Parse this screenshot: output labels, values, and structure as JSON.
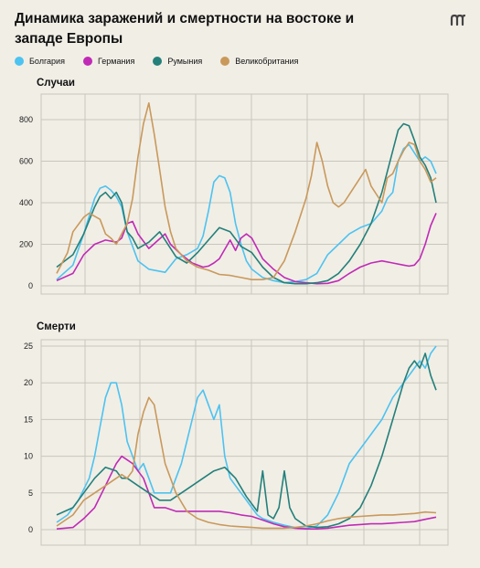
{
  "title": "Динамика заражений и смертности на востоке и западе Европы",
  "colors": {
    "Болгария": "#4cc3f0",
    "Германия": "#c02ab6",
    "Румыния": "#23807a",
    "Великобритания": "#c9995b",
    "grid": "#c9c6be",
    "background": "#f1eee6"
  },
  "legend": [
    "Болгария",
    "Германия",
    "Румыния",
    "Великобритания"
  ],
  "chart_data": [
    {
      "type": "line",
      "title": "Случаи",
      "yticks": [
        0,
        200,
        400,
        600,
        800
      ],
      "ylim": [
        0,
        900
      ],
      "xlim": [
        0,
        70
      ],
      "grid": true,
      "legend_position": "top-left",
      "series": [
        {
          "name": "Болгария",
          "x": [
            0,
            3,
            5,
            7,
            8,
            9,
            10,
            11,
            12,
            13,
            15,
            17,
            20,
            22,
            24,
            26,
            27,
            28,
            29,
            30,
            31,
            32,
            33,
            34,
            35,
            36,
            38,
            40,
            42,
            44,
            46,
            48,
            50,
            52,
            54,
            56,
            58,
            60,
            61,
            62,
            63,
            64,
            65,
            66,
            67,
            68,
            69,
            70
          ],
          "y": [
            30,
            100,
            250,
            420,
            470,
            480,
            460,
            430,
            380,
            260,
            120,
            80,
            65,
            130,
            150,
            180,
            240,
            360,
            500,
            530,
            520,
            450,
            300,
            200,
            120,
            80,
            40,
            25,
            15,
            20,
            30,
            60,
            150,
            200,
            250,
            280,
            300,
            360,
            420,
            450,
            600,
            660,
            680,
            640,
            600,
            620,
            600,
            540
          ]
        },
        {
          "name": "Германия",
          "x": [
            0,
            3,
            5,
            7,
            9,
            11,
            12,
            13,
            14,
            15,
            17,
            20,
            21,
            23,
            25,
            27,
            28,
            29,
            30,
            32,
            33,
            34,
            35,
            36,
            38,
            40,
            42,
            44,
            46,
            48,
            50,
            52,
            54,
            56,
            58,
            60,
            62,
            64,
            65,
            66,
            67,
            68,
            69,
            70
          ],
          "y": [
            25,
            60,
            150,
            200,
            220,
            210,
            230,
            300,
            310,
            250,
            180,
            250,
            200,
            150,
            110,
            90,
            95,
            110,
            130,
            220,
            170,
            230,
            250,
            230,
            130,
            80,
            40,
            20,
            15,
            10,
            12,
            25,
            60,
            90,
            110,
            120,
            110,
            100,
            95,
            100,
            130,
            200,
            290,
            350
          ]
        },
        {
          "name": "Румыния",
          "x": [
            0,
            3,
            5,
            7,
            8,
            9,
            10,
            11,
            12,
            13,
            14,
            15,
            17,
            19,
            20,
            22,
            24,
            26,
            28,
            30,
            32,
            34,
            36,
            38,
            40,
            42,
            44,
            46,
            48,
            50,
            52,
            54,
            56,
            58,
            60,
            62,
            63,
            64,
            65,
            66,
            67,
            68,
            69,
            70
          ],
          "y": [
            90,
            150,
            250,
            380,
            430,
            450,
            420,
            450,
            400,
            260,
            230,
            180,
            210,
            260,
            220,
            140,
            110,
            160,
            220,
            280,
            260,
            190,
            160,
            90,
            40,
            15,
            10,
            10,
            15,
            25,
            60,
            120,
            200,
            300,
            450,
            650,
            750,
            780,
            770,
            700,
            620,
            580,
            520,
            400
          ]
        },
        {
          "name": "Великобритания",
          "x": [
            0,
            2,
            3,
            5,
            6,
            8,
            9,
            10,
            11,
            12,
            13,
            14,
            15,
            16,
            17,
            18,
            19,
            20,
            21,
            22,
            24,
            26,
            28,
            30,
            32,
            34,
            36,
            38,
            40,
            42,
            44,
            46,
            47,
            48,
            49,
            50,
            51,
            52,
            53,
            54,
            56,
            57,
            58,
            60,
            61,
            62,
            63,
            64,
            65,
            66,
            67,
            68,
            69,
            70
          ],
          "y": [
            60,
            160,
            260,
            330,
            350,
            320,
            250,
            230,
            200,
            250,
            300,
            420,
            620,
            780,
            880,
            730,
            560,
            380,
            260,
            180,
            120,
            90,
            75,
            55,
            50,
            40,
            30,
            30,
            40,
            120,
            260,
            420,
            530,
            690,
            600,
            480,
            400,
            380,
            400,
            440,
            520,
            560,
            480,
            400,
            520,
            540,
            600,
            650,
            690,
            680,
            600,
            560,
            500,
            520
          ]
        }
      ]
    },
    {
      "type": "line",
      "title": "Смерти",
      "yticks": [
        0,
        5,
        10,
        15,
        20,
        25
      ],
      "ylim": [
        0,
        25
      ],
      "xlim": [
        0,
        70
      ],
      "grid": true,
      "series": [
        {
          "name": "Болгария",
          "x": [
            0,
            2,
            4,
            6,
            7,
            8,
            9,
            10,
            11,
            12,
            13,
            14,
            15,
            16,
            17,
            18,
            19,
            20,
            21,
            22,
            23,
            24,
            25,
            26,
            27,
            28,
            29,
            30,
            31,
            32,
            33,
            34,
            35,
            36,
            37,
            38,
            40,
            42,
            44,
            46,
            48,
            50,
            52,
            54,
            56,
            58,
            60,
            62,
            63,
            64,
            65,
            66,
            67,
            68,
            69,
            70
          ],
          "y": [
            1,
            2,
            4,
            7,
            10,
            14,
            18,
            20,
            20,
            17,
            12,
            10,
            8,
            9,
            7,
            5,
            5,
            5,
            5,
            7,
            9,
            12,
            15,
            18,
            19,
            17,
            15,
            17,
            10,
            7,
            6,
            5,
            4,
            3,
            2,
            1.5,
            1,
            0.6,
            0.3,
            0.2,
            0.5,
            2,
            5,
            9,
            11,
            13,
            15,
            18,
            19,
            20,
            21,
            22,
            23,
            22,
            24,
            25
          ]
        },
        {
          "name": "Германия",
          "x": [
            0,
            3,
            5,
            7,
            9,
            11,
            12,
            13,
            14,
            15,
            16,
            17,
            18,
            19,
            20,
            22,
            24,
            26,
            28,
            30,
            32,
            34,
            36,
            38,
            40,
            42,
            44,
            46,
            48,
            50,
            52,
            54,
            56,
            58,
            60,
            62,
            64,
            66,
            68,
            70
          ],
          "y": [
            0.1,
            0.3,
            1.5,
            3,
            6,
            9,
            10,
            9.5,
            9,
            8,
            7,
            5,
            3,
            3,
            3,
            2.5,
            2.5,
            2.5,
            2.5,
            2.5,
            2.3,
            2,
            1.8,
            1.3,
            0.8,
            0.4,
            0.2,
            0.1,
            0.1,
            0.2,
            0.4,
            0.6,
            0.7,
            0.8,
            0.8,
            0.9,
            1,
            1.1,
            1.4,
            1.7
          ]
        },
        {
          "name": "Румыния",
          "x": [
            0,
            3,
            5,
            7,
            9,
            11,
            12,
            13,
            15,
            17,
            19,
            21,
            23,
            25,
            27,
            29,
            31,
            33,
            35,
            37,
            38,
            39,
            40,
            41,
            42,
            43,
            44,
            45,
            46,
            48,
            50,
            52,
            54,
            56,
            58,
            60,
            62,
            64,
            65,
            66,
            67,
            68,
            69,
            70
          ],
          "y": [
            2,
            3,
            5,
            7,
            8.5,
            8,
            7,
            7,
            6,
            5,
            4,
            4,
            5,
            6,
            7,
            8,
            8.5,
            7,
            4.5,
            2.5,
            8,
            2,
            1.5,
            3,
            8,
            3,
            1.5,
            1,
            0.5,
            0.3,
            0.4,
            0.8,
            1.5,
            3,
            6,
            10,
            15,
            20,
            22,
            23,
            22,
            24,
            21,
            19
          ]
        },
        {
          "name": "Великобритания",
          "x": [
            0,
            3,
            5,
            7,
            9,
            11,
            12,
            13,
            14,
            15,
            16,
            17,
            18,
            19,
            20,
            21,
            22,
            24,
            26,
            28,
            30,
            32,
            34,
            36,
            38,
            40,
            42,
            44,
            46,
            48,
            50,
            52,
            54,
            56,
            58,
            60,
            62,
            64,
            66,
            68,
            70
          ],
          "y": [
            0.5,
            2,
            4,
            5,
            6,
            7,
            7.5,
            7,
            8,
            13,
            16,
            18,
            17,
            13,
            9,
            7,
            5,
            2.5,
            1.5,
            1,
            0.7,
            0.5,
            0.4,
            0.3,
            0.2,
            0.2,
            0.2,
            0.3,
            0.5,
            0.8,
            1.2,
            1.5,
            1.7,
            1.8,
            1.9,
            2,
            2,
            2.1,
            2.2,
            2.4,
            2.3
          ]
        }
      ]
    }
  ]
}
